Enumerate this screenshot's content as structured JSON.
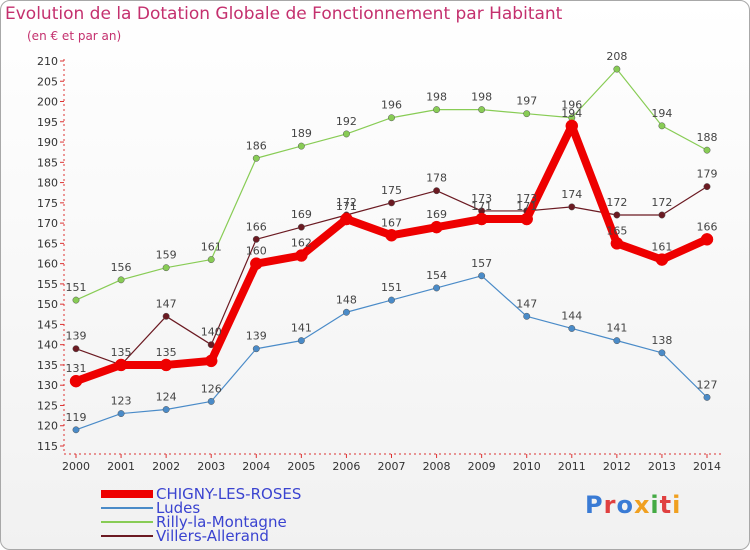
{
  "title": "Evolution de la Dotation Globale de Fonctionnement par Habitant",
  "subtitle": "(en € et par an)",
  "logo": {
    "text": "Proxiti",
    "colors": [
      "#3a7bd5",
      "#e04040",
      "#3a7bd5",
      "#f0a020",
      "#44aa44",
      "#e04040",
      "#f0a020"
    ]
  },
  "chart_data": {
    "type": "line",
    "x": [
      2000,
      2001,
      2002,
      2003,
      2004,
      2005,
      2006,
      2007,
      2008,
      2009,
      2010,
      2011,
      2012,
      2013,
      2014
    ],
    "ylim": [
      115,
      210
    ],
    "yticks": [
      115,
      120,
      125,
      130,
      135,
      140,
      145,
      150,
      155,
      160,
      165,
      170,
      175,
      180,
      185,
      190,
      195,
      200,
      205,
      210
    ],
    "grid": false,
    "legend_position": "bottom-left",
    "series": [
      {
        "name": "Villers-Allerand",
        "color": "#6b1a22",
        "width": 1.2,
        "values": [
          139,
          135,
          147,
          140,
          166,
          169,
          172,
          175,
          178,
          173,
          173,
          174,
          172,
          172,
          179
        ],
        "labels": [
          "139",
          "",
          "147",
          "140",
          "166",
          "169",
          "172",
          "175",
          "178",
          "173",
          "173",
          "174",
          "172",
          "172",
          "179"
        ]
      },
      {
        "name": "Ludes",
        "color": "#4a8bc8",
        "width": 1.2,
        "values": [
          119,
          123,
          124,
          126,
          139,
          141,
          148,
          151,
          154,
          157,
          147,
          144,
          141,
          138,
          127
        ],
        "labels": [
          "119",
          "123",
          "124",
          "126",
          "139",
          "141",
          "148",
          "151",
          "154",
          "157",
          "147",
          "144",
          "141",
          "138",
          "127"
        ]
      },
      {
        "name": "Rilly-la-Montagne",
        "color": "#88cc55",
        "width": 1.2,
        "values": [
          151,
          156,
          159,
          161,
          186,
          189,
          192,
          196,
          198,
          198,
          197,
          196,
          208,
          194,
          188
        ],
        "labels": [
          "151",
          "156",
          "159",
          "161",
          "186",
          "189",
          "192",
          "196",
          "198",
          "198",
          "197",
          "196",
          "208",
          "194",
          "188"
        ]
      },
      {
        "name": "CHIGNY-LES-ROSES",
        "color": "#ee0000",
        "width": 8,
        "values": [
          131,
          135,
          135,
          136,
          160,
          162,
          171,
          167,
          169,
          171,
          171,
          194,
          165,
          161,
          166
        ],
        "labels": [
          "131",
          "135",
          "135",
          "",
          "160",
          "162",
          "171",
          "167",
          "169",
          "171",
          "171",
          "194",
          "165",
          "161",
          "166"
        ]
      }
    ],
    "legend": [
      {
        "name": "CHIGNY-LES-ROSES",
        "color": "#ee0000",
        "thick": true
      },
      {
        "name": "Ludes",
        "color": "#4a8bc8",
        "thick": false
      },
      {
        "name": "Rilly-la-Montagne",
        "color": "#88cc55",
        "thick": false
      },
      {
        "name": "Villers-Allerand",
        "color": "#6b1a22",
        "thick": false
      }
    ]
  }
}
